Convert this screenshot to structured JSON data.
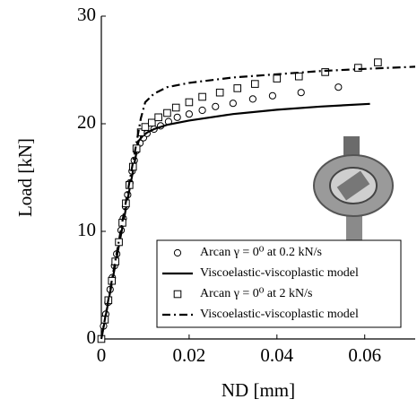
{
  "chart_data": {
    "type": "line",
    "x_label": "ND [mm]",
    "y_label": "Load [kN]",
    "xlim": [
      0,
      0.0715
    ],
    "ylim": [
      0,
      30
    ],
    "xticks": [
      0,
      0.02,
      0.04,
      0.06
    ],
    "yticks": [
      0,
      10,
      20,
      30
    ],
    "grid": false,
    "legend_position": "lower right",
    "series": [
      {
        "name": "Arcan γ = 0⁰ at 0.2 kN/s",
        "color": "#000000",
        "marker": "circle",
        "x": [
          0,
          0.0005,
          0.001,
          0.0015,
          0.002,
          0.0025,
          0.003,
          0.0035,
          0.004,
          0.0045,
          0.005,
          0.0055,
          0.006,
          0.0065,
          0.007,
          0.0075,
          0.008,
          0.0088,
          0.0096,
          0.0104,
          0.012,
          0.0135,
          0.0153,
          0.0173,
          0.02,
          0.023,
          0.026,
          0.03,
          0.0345,
          0.039,
          0.0455,
          0.054
        ],
        "values": [
          0,
          1.2,
          2.3,
          3.4,
          4.6,
          5.7,
          6.8,
          7.9,
          9.0,
          10.1,
          11.2,
          12.3,
          13.4,
          14.5,
          15.6,
          16.6,
          17.5,
          18.2,
          18.7,
          19.1,
          19.5,
          19.8,
          20.2,
          20.6,
          20.9,
          21.25,
          21.6,
          21.9,
          22.3,
          22.6,
          22.9,
          23.4
        ]
      },
      {
        "name": "Viscoelastic-viscoplastic model",
        "color": "#000000",
        "line": "solid",
        "x": [
          0,
          0.0085,
          0.0095,
          0.0105,
          0.012,
          0.015,
          0.02,
          0.03,
          0.04,
          0.05,
          0.0612
        ],
        "values": [
          0,
          18.4,
          18.9,
          19.2,
          19.5,
          19.9,
          20.3,
          20.9,
          21.3,
          21.6,
          21.85
        ]
      },
      {
        "name": "Arcan γ = 0⁰ at 2 kN/s",
        "color": "#000000",
        "marker": "square",
        "x": [
          0,
          0.0008,
          0.0016,
          0.0024,
          0.0032,
          0.004,
          0.0048,
          0.0056,
          0.0064,
          0.0072,
          0.008,
          0.009,
          0.01,
          0.0115,
          0.013,
          0.015,
          0.017,
          0.02,
          0.023,
          0.027,
          0.031,
          0.035,
          0.04,
          0.045,
          0.051,
          0.0585,
          0.063
        ],
        "values": [
          0,
          1.8,
          3.6,
          5.4,
          7.2,
          9.0,
          10.8,
          12.6,
          14.3,
          16.0,
          17.7,
          19.2,
          19.7,
          20.1,
          20.6,
          21.0,
          21.5,
          22.0,
          22.5,
          22.9,
          23.3,
          23.7,
          24.2,
          24.4,
          24.8,
          25.2,
          25.7
        ]
      },
      {
        "name": "Viscoelastic-viscoplastic model",
        "color": "#000000",
        "line": "dashdot",
        "x": [
          0,
          0.009,
          0.01,
          0.012,
          0.015,
          0.02,
          0.03,
          0.04,
          0.05,
          0.06,
          0.0715
        ],
        "values": [
          0,
          20.5,
          22.0,
          22.8,
          23.4,
          23.8,
          24.3,
          24.6,
          24.9,
          25.1,
          25.3
        ]
      }
    ]
  }
}
